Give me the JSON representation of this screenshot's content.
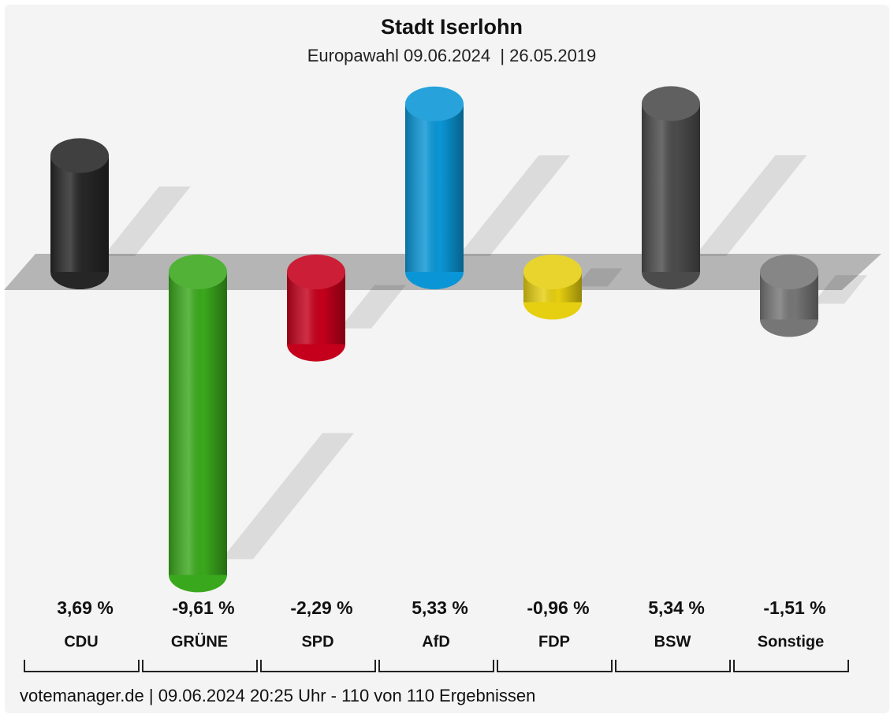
{
  "chart_data": {
    "type": "bar",
    "title": "Stadt Iserlohn",
    "subtitle": "Europawahl 09.06.2024  | 26.05.2019",
    "categories": [
      "CDU",
      "GRÜNE",
      "SPD",
      "AfD",
      "FDP",
      "BSW",
      "Sonstige"
    ],
    "values": [
      3.69,
      -9.61,
      -2.29,
      5.33,
      -0.96,
      5.34,
      -1.51
    ],
    "value_labels": [
      "3,69 %",
      "-9,61 %",
      "-2,29 %",
      "5,33 %",
      "-0,96 %",
      "5,34 %",
      "-1,51 %"
    ],
    "colors": [
      "#262626",
      "#3aa81c",
      "#c5001c",
      "#0a96d6",
      "#e6cf10",
      "#4b4b4b",
      "#767676"
    ],
    "footer": "votemanager.de | 09.06.2024 20:25 Uhr - 110 von 110 Ergebnissen"
  }
}
